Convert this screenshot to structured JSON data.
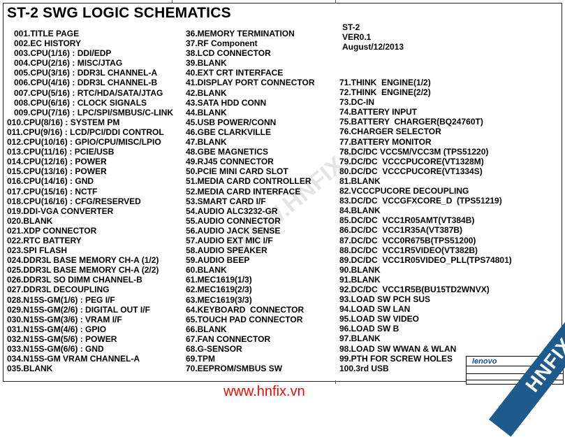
{
  "title": "ST-2 SWG LOGIC SCHEMATICS",
  "info": {
    "model": "ST-2",
    "version": "VER0.1",
    "date": "August/12/2013"
  },
  "columns": {
    "left": [
      "001.TITLE PAGE",
      "002.EC HISTORY",
      "003.CPU(1/16) : DDI/EDP",
      "004.CPU(2/16) : MISC/JTAG",
      "005.CPU(3/16) : DDR3L CHANNEL-A",
      "006.CPU(4/16) : DDR3L CHANNEL-B",
      "007.CPU(5/16) : RTC/HDA/SATA/JTAG",
      "008.CPU(6/16) : CLOCK SIGNALS",
      "009.CPU(7/16) : LPC/SPI/SMBUS/C-LINK",
      "010.CPU(8/16) : SYSTEM PM",
      "011.CPU(9/16) : LCD/PCI/DDI CONTROL",
      "012.CPU(10/16) : GPIO/CPU/MISC/LPIO",
      "013.CPU(11/16) : PCIE/USB",
      "014.CPU(12/16) : POWER",
      "015.CPU(13/16) : POWER",
      "016.CPU(14/16) : GND",
      "017.CPU(15/16) : NCTF",
      "018.CPU(16/16) : CFG/RESERVED",
      "019.DDI-VGA CONVERTER",
      "020.BLANK",
      "021.XDP CONNECTOR",
      "022.RTC BATTERY",
      "023.SPI FLASH",
      "024.DDR3L BASE MEMORY CH-A (1/2)",
      "025.DDR3L BASE MEMORY CH-A (2/2)",
      "026.DDR3L SO DIMM CHANNEL-B",
      "027.DDR3L DECOUPLING",
      "028.N15S-GM(1/6) : PEG I/F",
      "029.N15S-GM(2/6) : DIGITAL OUT I/F",
      "030.N15S-GM(3/6) : VRAM I/F",
      "031.N15S-GM(4/6) : GPIO",
      "032.N15S-GM(5/6) : POWER",
      "033.N15S-GM(6/6) : GND",
      "034.N15S-GM VRAM CHANNEL-A",
      "035.BLANK"
    ],
    "middle": [
      "36.MEMORY TERMINATION",
      "37.RF Component",
      "38.LCD CONNECTOR",
      "39.BLANK",
      "40.EXT CRT INTERFACE",
      "41.DISPLAY PORT CONNECTOR",
      "42.BLANK",
      "43.SATA HDD CONN",
      "44.BLANK",
      "45.USB POWER/CONN",
      "46.GBE CLARKVILLE",
      "47.BLANK",
      "48.GBE MAGNETICS",
      "49.RJ45 CONNECTOR",
      "50.PCIE MINI CARD SLOT",
      "51.MEDIA CARD CONTROLLER",
      "52.MEDIA CARD INTERFACE",
      "53.SMART CARD I/F",
      "54.AUDIO ALC3232-GR",
      "55.AUDIO CONNECTOR",
      "56.AUDIO JACK SENSE",
      "57.AUDIO EXT MIC I/F",
      "58.AUDIO SPEAKER",
      "59.AUDIO BEEP",
      "60.BLANK",
      "61.MEC1619(1/3)",
      "62.MEC1619(2/3)",
      "63.MEC1619(3/3)",
      "64.KEYBOARD  CONNECTOR",
      "65.TOUCH PAD CONNECTOR",
      "66.BLANK",
      "67.FAN CONNECTOR",
      "68.G-SENSOR",
      "69.TPM",
      "70.EEPROM/SMBUS SW"
    ],
    "right": [
      "71.THINK  ENGINE(1/2)",
      "72.THINK  ENGINE(2/2)",
      "73.DC-IN",
      "74.BATTERY INPUT",
      "75.BATTERY  CHARGER(BQ24760T)",
      "76.CHARGER SELECTOR",
      "77.BATTERY MONITOR",
      "78.DC/DC VCC5M/VCC3M (TPS51220)",
      "79.DC/DC  VCCCPUCORE(VT1328M)",
      "80.DC/DC  VCCCPUCORE(VT1334S)",
      "81.BLANK",
      "82.VCCCPUCORE DECOUPLING",
      "83.DC/DC  VCCGFXCORE_D  (TPS51219)",
      "84.BLANK",
      "85.DC/DC  VCC1R05AMT(VT384B)",
      "86.DC/DC  VCC1R35A(VT387B)",
      "87.DC/DC  VCC0R675B(TPS51200)",
      "88.DC/DC  VCC1R5VIDEO(VT382B)",
      "89.DC/DC  VCC1R05VIDEO_PLL(TPS74801)",
      "90.BLANK",
      "91.BLANK",
      "92.DC/DC  VCC1R5B(BU15TD2WNVX)",
      "93.LOAD SW PCH SUS",
      "94.LOAD SW LAN",
      "95.LOAD SW VIDEO",
      "96.LOAD SW B",
      "97.BLANK",
      "98.LOAD SW WWAN & WLAN",
      "99.PTH FOR SCREW HOLES",
      "100.3rd USB"
    ]
  },
  "title_block": {
    "logo": "lenovo"
  },
  "watermark": {
    "url": "www.hnfix.vn",
    "banner": "HNFIX.VN",
    "diagonal": "WWW.HNFIX.VN"
  },
  "colors": {
    "watermark_text": "#e01010",
    "banner": "#1e5a8c",
    "logo": "#1a4f9c"
  }
}
